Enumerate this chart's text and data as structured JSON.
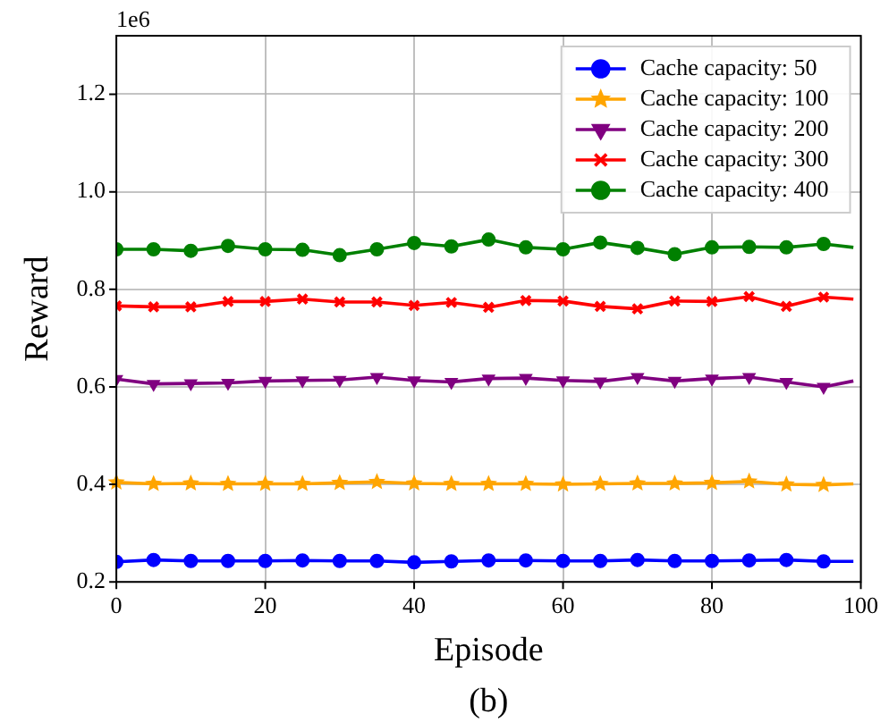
{
  "chart_data": {
    "type": "line",
    "xlabel": "Episode",
    "ylabel": "Reward",
    "annotations": [
      "1e6",
      "(b)"
    ],
    "x": [
      0,
      5,
      10,
      15,
      20,
      25,
      30,
      35,
      40,
      45,
      50,
      55,
      60,
      65,
      70,
      75,
      80,
      85,
      90,
      95,
      99
    ],
    "xlim": [
      0,
      100
    ],
    "xticks": [
      0,
      20,
      40,
      60,
      80,
      100
    ],
    "ylim": [
      0.2,
      1.32
    ],
    "yticks": [
      {
        "value": 0.2,
        "label": "0.2"
      },
      {
        "value": 0.4,
        "label": "0.4"
      },
      {
        "value": 0.6,
        "label": "0.6"
      },
      {
        "value": 0.8,
        "label": "0.8"
      },
      {
        "value": 1.0,
        "label": "1.0"
      },
      {
        "value": 1.2,
        "label": "1.2"
      }
    ],
    "grid": true,
    "legend": "top right",
    "line_style": "solid",
    "series": [
      {
        "name": "Cache capacity: 50",
        "color": "#0000ff",
        "marker": "circle",
        "values": [
          0.241,
          0.245,
          0.243,
          0.243,
          0.243,
          0.244,
          0.243,
          0.243,
          0.24,
          0.242,
          0.244,
          0.244,
          0.243,
          0.243,
          0.245,
          0.243,
          0.243,
          0.244,
          0.245,
          0.242,
          0.242
        ]
      },
      {
        "name": "Cache capacity: 100",
        "color": "#ffa500",
        "marker": "star",
        "values": [
          0.404,
          0.401,
          0.402,
          0.401,
          0.401,
          0.401,
          0.403,
          0.405,
          0.402,
          0.401,
          0.401,
          0.401,
          0.4,
          0.401,
          0.402,
          0.402,
          0.403,
          0.406,
          0.4,
          0.399,
          0.401
        ]
      },
      {
        "name": "Cache capacity: 200",
        "color": "#800080",
        "marker": "triangle",
        "values": [
          0.616,
          0.606,
          0.607,
          0.608,
          0.612,
          0.613,
          0.614,
          0.62,
          0.613,
          0.61,
          0.617,
          0.618,
          0.613,
          0.611,
          0.62,
          0.612,
          0.617,
          0.62,
          0.61,
          0.6,
          0.612
        ]
      },
      {
        "name": "Cache capacity: 300",
        "color": "#ff0000",
        "marker": "cross",
        "values": [
          0.766,
          0.764,
          0.764,
          0.775,
          0.775,
          0.78,
          0.774,
          0.774,
          0.767,
          0.773,
          0.763,
          0.777,
          0.776,
          0.765,
          0.76,
          0.776,
          0.775,
          0.785,
          0.765,
          0.784,
          0.78
        ]
      },
      {
        "name": "Cache capacity: 400",
        "color": "#008000",
        "marker": "circle",
        "values": [
          0.882,
          0.882,
          0.879,
          0.889,
          0.882,
          0.881,
          0.87,
          0.882,
          0.895,
          0.888,
          0.902,
          0.886,
          0.882,
          0.896,
          0.885,
          0.872,
          0.886,
          0.887,
          0.886,
          0.893,
          0.886
        ]
      }
    ]
  }
}
